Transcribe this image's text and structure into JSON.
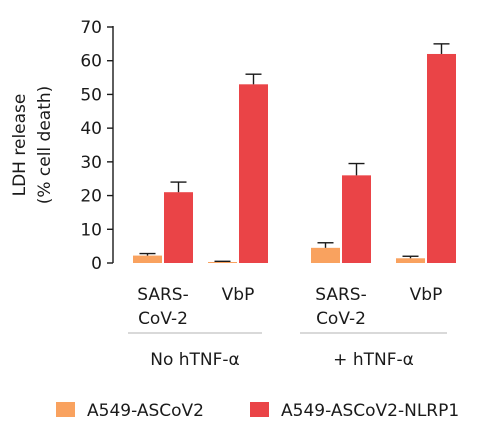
{
  "chart_data": {
    "type": "bar",
    "ylabel_lines": [
      "LDH release",
      "(% cell death)"
    ],
    "ylim": [
      0,
      70
    ],
    "yticks": [
      0,
      10,
      20,
      30,
      40,
      50,
      60,
      70
    ],
    "categories": [
      {
        "lines": [
          "SARS-",
          "CoV-2"
        ]
      },
      {
        "lines": [
          "VbP"
        ]
      },
      {
        "lines": [
          "SARS-",
          "CoV-2"
        ]
      },
      {
        "lines": [
          "VbP"
        ]
      }
    ],
    "groups": [
      {
        "label": "No hTNF-α",
        "categories": [
          0,
          1
        ]
      },
      {
        "label": "+ hTNF-α",
        "categories": [
          2,
          3
        ]
      }
    ],
    "series": [
      {
        "name": "A549-ASCoV2",
        "color": "#f9a25f",
        "values": [
          2.2,
          0.3,
          4.5,
          1.4
        ],
        "errors": [
          0.6,
          0.2,
          1.5,
          0.6
        ]
      },
      {
        "name": "A549-ASCoV2-NLRP1",
        "color": "#ea4447",
        "values": [
          21,
          53,
          26,
          62
        ],
        "errors": [
          3,
          3,
          3.5,
          3
        ]
      }
    ],
    "grid": false,
    "legend_position": "bottom"
  }
}
